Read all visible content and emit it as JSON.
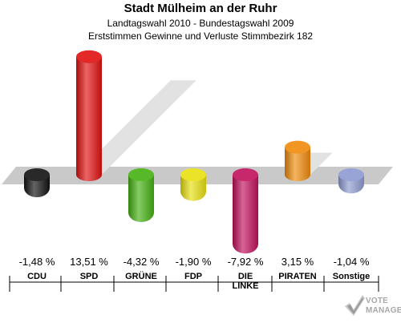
{
  "header": {
    "title": "Stadt Mülheim an der Ruhr",
    "subtitle": "Landtagswahl 2010 - Bundestagswahl 2009",
    "subtitle2": "Erststimmen Gewinne und Verluste Stimmbezirk 182"
  },
  "logo": {
    "line1": "VOTE",
    "line2": "MANAGER"
  },
  "chart_data": {
    "type": "bar",
    "title": "Stadt Mülheim an der Ruhr",
    "subtitle": "Landtagswahl 2010 - Bundestagswahl 2009 / Erststimmen Gewinne und Verluste Stimmbezirk 182",
    "xlabel": "",
    "ylabel": "",
    "unit": "%",
    "grid": false,
    "legend": "none",
    "categories": [
      "CDU",
      "SPD",
      "GRÜNE",
      "FDP",
      "DIE LINKE",
      "PIRATEN",
      "Sonstige"
    ],
    "values": [
      -1.48,
      13.51,
      -4.32,
      -1.9,
      -7.92,
      3.15,
      -1.04
    ],
    "value_labels": [
      "-1,48 %",
      "13,51 %",
      "-4,32 %",
      "-1,90 %",
      "-7,92 %",
      "3,15 %",
      "-1,04 %"
    ],
    "colors": [
      "#111111",
      "#e01010",
      "#44b010",
      "#e8e010",
      "#c0105a",
      "#f08a0a",
      "#8d9ad0"
    ]
  }
}
